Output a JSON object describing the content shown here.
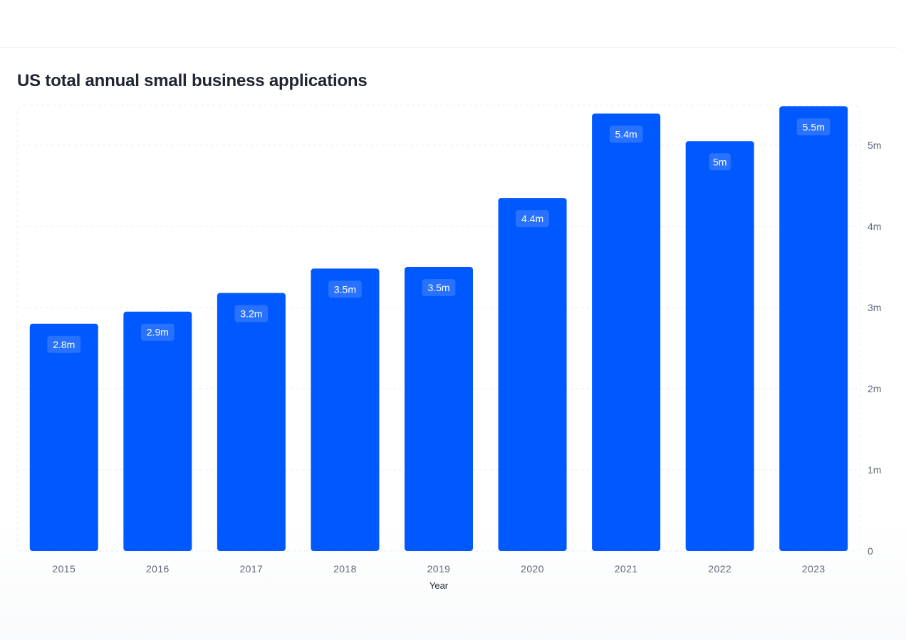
{
  "chart_data": {
    "type": "bar",
    "title": "US total annual small business applications",
    "xlabel": "Year",
    "ylabel": "",
    "categories": [
      "2015",
      "2016",
      "2017",
      "2018",
      "2019",
      "2020",
      "2021",
      "2022",
      "2023"
    ],
    "values": [
      2.8,
      2.95,
      3.18,
      3.48,
      3.5,
      4.35,
      5.39,
      5.05,
      5.48
    ],
    "data_labels": [
      "2.8m",
      "2.9m",
      "3.2m",
      "3.5m",
      "3.5m",
      "4.4m",
      "5.4m",
      "5m",
      "5.5m"
    ],
    "y_ticks": [
      0,
      1,
      2,
      3,
      4,
      5
    ],
    "y_tick_labels": [
      "0",
      "1m",
      "2m",
      "3m",
      "4m",
      "5m"
    ],
    "ylim": [
      0,
      5.5
    ],
    "y_axis_side": "right",
    "grid": true,
    "legend": "none",
    "bar_color": "#0058ff"
  }
}
